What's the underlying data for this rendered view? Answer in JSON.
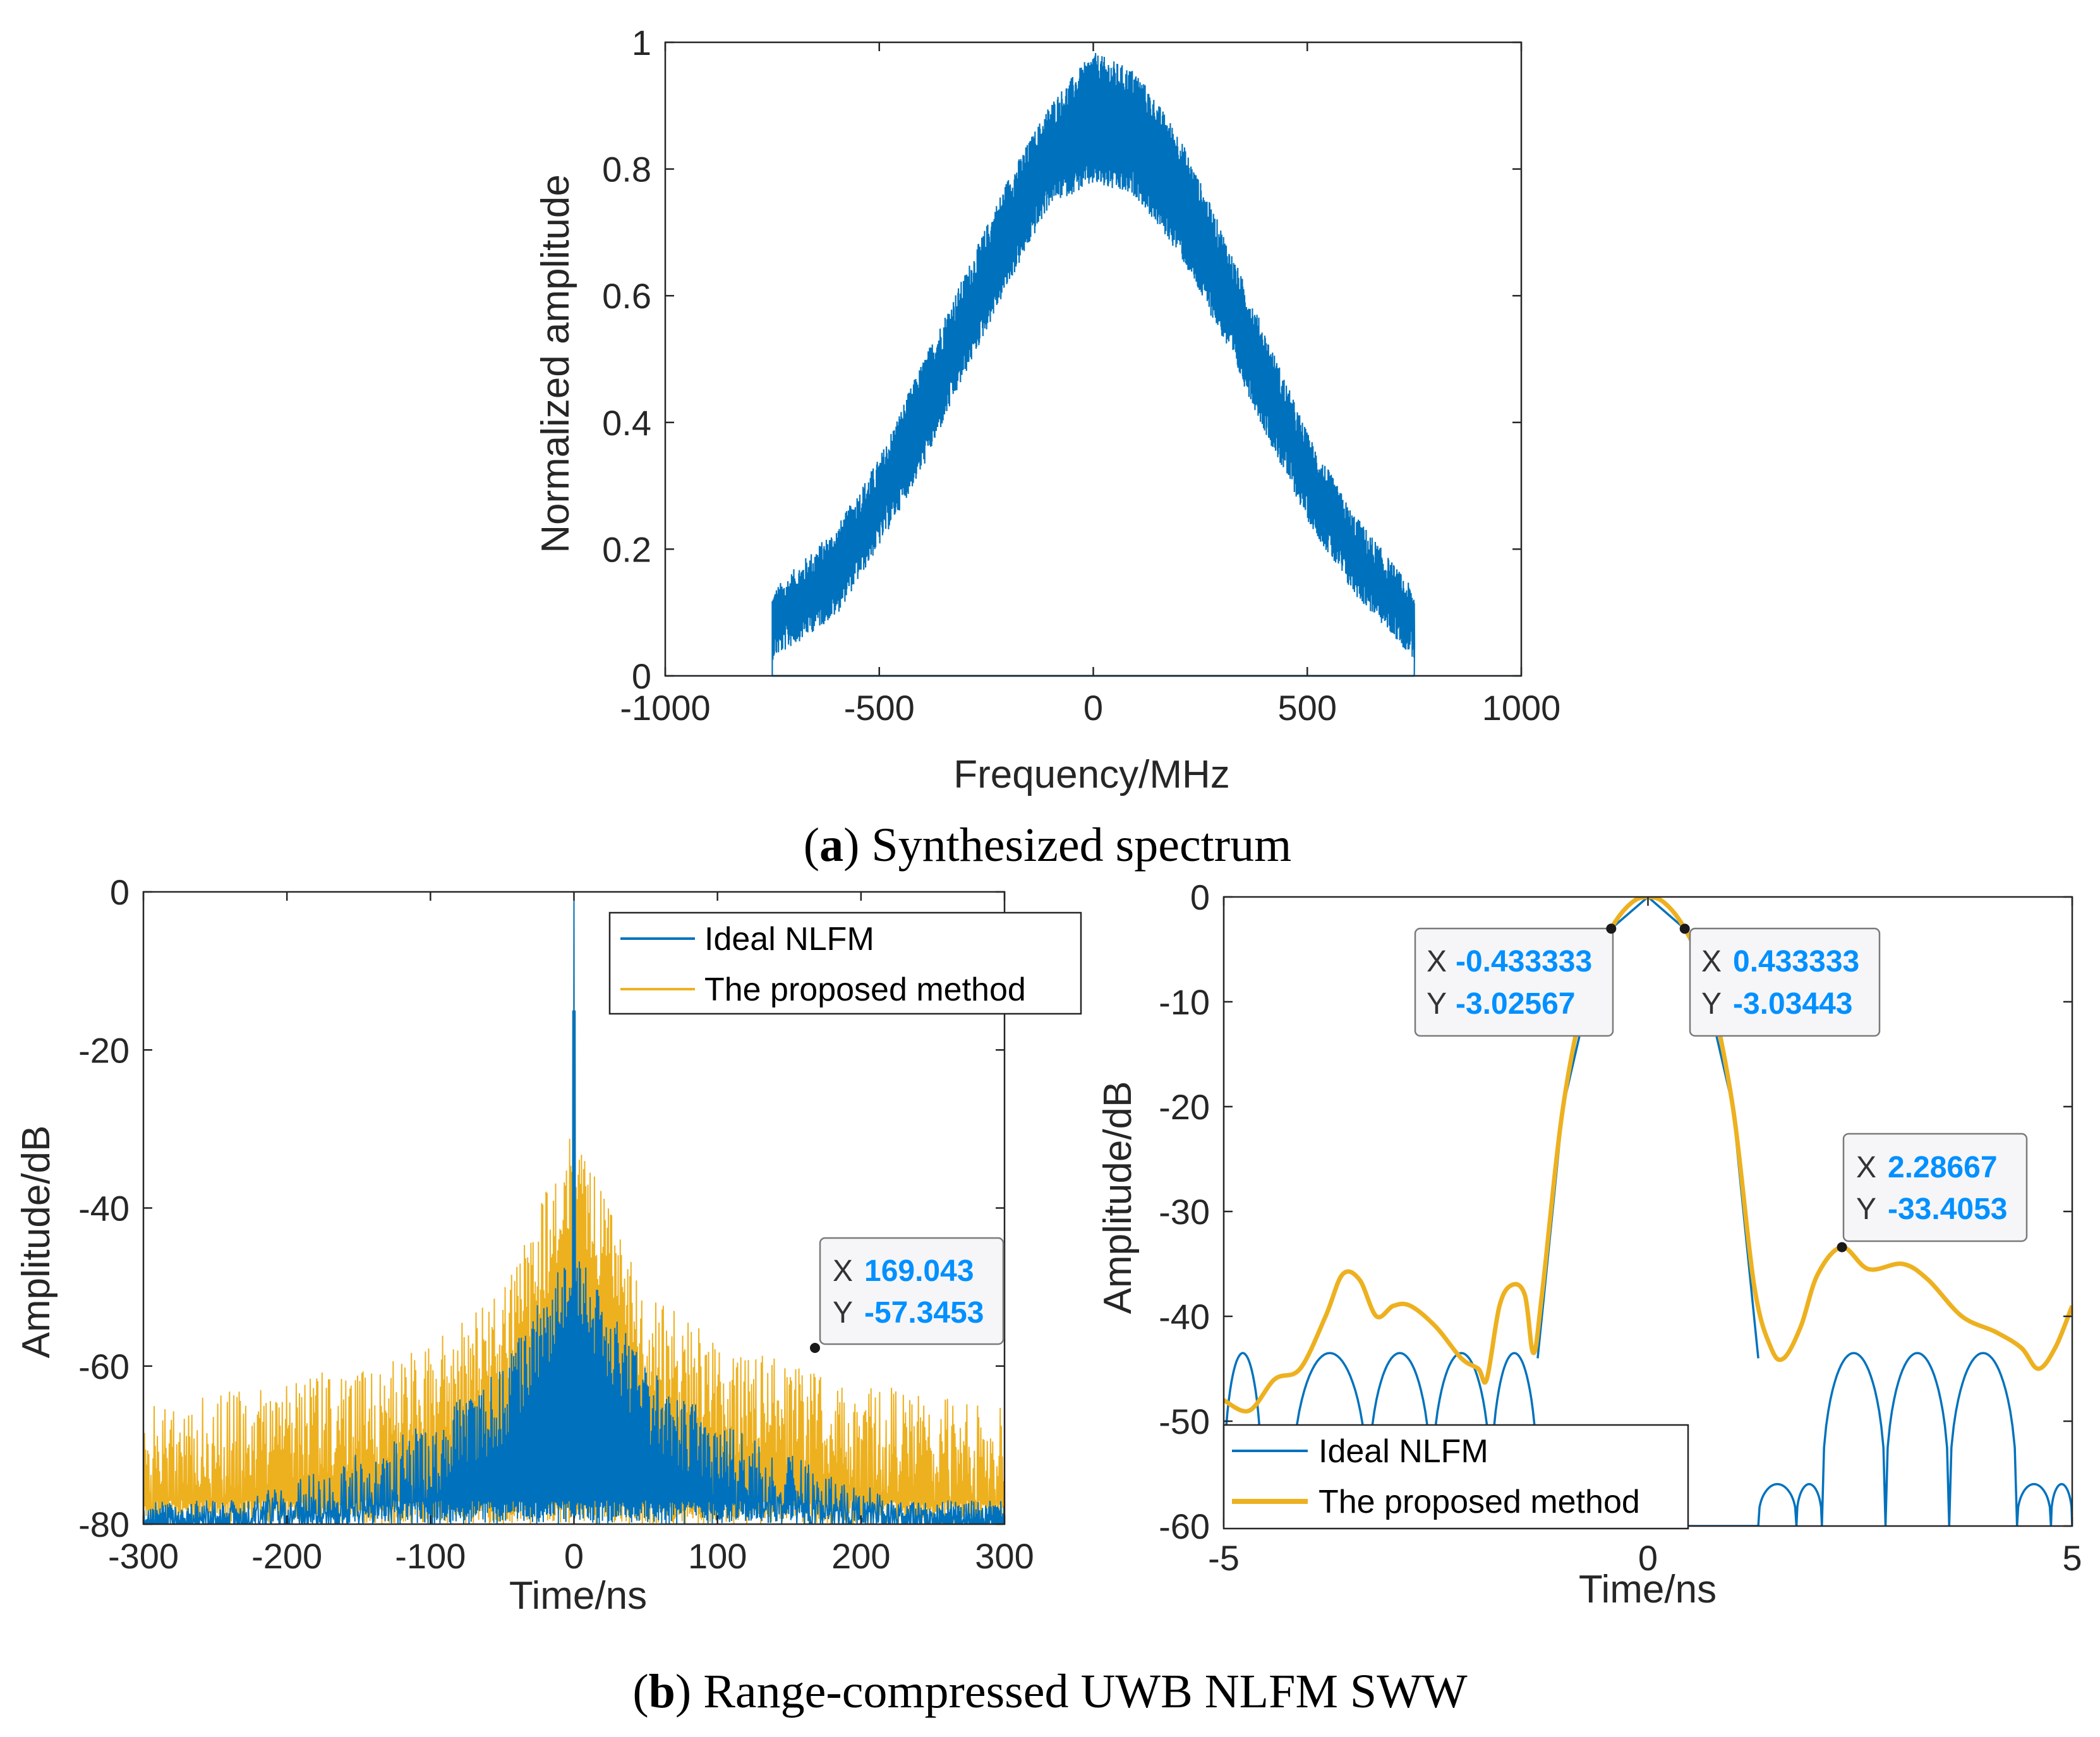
{
  "colors": {
    "ideal": "#0072BD",
    "proposed": "#EDB120",
    "axis": "#262626",
    "tip_value": "#0090ff"
  },
  "chart_data": [
    {
      "id": "a",
      "type": "area",
      "title": "",
      "xlabel": "Frequency/MHz",
      "ylabel": "Normalized amplitude",
      "xlim": [
        -1000,
        1000
      ],
      "ylim": [
        0,
        1
      ],
      "xticks": [
        -1000,
        -500,
        0,
        500,
        1000
      ],
      "yticks": [
        0,
        0.2,
        0.4,
        0.6,
        0.8,
        1
      ],
      "xtick_labels": [
        "-1000",
        "-500",
        "0",
        "500",
        "1000"
      ],
      "ytick_labels": [
        "0",
        "0.2",
        "0.4",
        "0.6",
        "0.8",
        "1"
      ],
      "band_edges_mhz": [
        -750,
        750
      ],
      "series": [
        {
          "name": "Synthesized spectrum",
          "color": "#0072BD",
          "envelope_upper": [
            [
              -750,
              0.11
            ],
            [
              -600,
              0.21
            ],
            [
              -500,
              0.32
            ],
            [
              -400,
              0.47
            ],
            [
              -300,
              0.61
            ],
            [
              -200,
              0.76
            ],
            [
              -100,
              0.88
            ],
            [
              0,
              0.96
            ],
            [
              100,
              0.93
            ],
            [
              200,
              0.83
            ],
            [
              300,
              0.68
            ],
            [
              400,
              0.52
            ],
            [
              500,
              0.36
            ],
            [
              600,
              0.24
            ],
            [
              750,
              0.11
            ]
          ],
          "envelope_lower": [
            [
              -750,
              0.07
            ],
            [
              -600,
              0.14
            ],
            [
              -500,
              0.25
            ],
            [
              -400,
              0.37
            ],
            [
              -300,
              0.52
            ],
            [
              -200,
              0.66
            ],
            [
              -100,
              0.79
            ],
            [
              0,
              0.82
            ],
            [
              100,
              0.8
            ],
            [
              200,
              0.71
            ],
            [
              300,
              0.58
            ],
            [
              400,
              0.43
            ],
            [
              500,
              0.29
            ],
            [
              600,
              0.18
            ],
            [
              750,
              0.07
            ]
          ]
        }
      ],
      "caption_label": "a",
      "caption_text": ") Synthesized spectrum"
    },
    {
      "id": "b-left",
      "type": "line",
      "xlabel": "Time/ns",
      "ylabel": "Amplitude/dB",
      "xlim": [
        -300,
        300
      ],
      "ylim": [
        -80,
        0
      ],
      "xticks": [
        -300,
        -200,
        -100,
        0,
        100,
        200,
        300
      ],
      "yticks": [
        -80,
        -60,
        -40,
        -20,
        0
      ],
      "xtick_labels": [
        "-300",
        "-200",
        "-100",
        "0",
        "100",
        "200",
        "300"
      ],
      "ytick_labels": [
        "-80",
        "-60",
        "-40",
        "-20",
        "0"
      ],
      "legend": [
        "Ideal NLFM",
        "The proposed method"
      ],
      "legend_position": "top-right",
      "series": [
        {
          "name": "Ideal NLFM",
          "color": "#0072BD",
          "peak": [
            0,
            0
          ],
          "sidelobe_envelope_db": [
            [
              -300,
              -80
            ],
            [
              -200,
              -75
            ],
            [
              -100,
              -67
            ],
            [
              -50,
              -60
            ],
            [
              0,
              -44
            ],
            [
              50,
              -60
            ],
            [
              100,
              -67
            ],
            [
              200,
              -75
            ],
            [
              300,
              -80
            ]
          ]
        },
        {
          "name": "The proposed method",
          "color": "#EDB120",
          "peak": [
            0,
            0
          ],
          "sidelobe_envelope_db": [
            [
              -300,
              -65
            ],
            [
              -200,
              -62
            ],
            [
              -100,
              -57
            ],
            [
              -50,
              -50
            ],
            [
              0,
              -30
            ],
            [
              50,
              -50
            ],
            [
              100,
              -57
            ],
            [
              200,
              -62
            ],
            [
              300,
              -65
            ]
          ]
        }
      ],
      "datatips": [
        {
          "x_label": "X",
          "x_value": "169.043",
          "y_label": "Y",
          "y_value": "-57.3453",
          "x": 169.043,
          "y": -57.3453
        }
      ]
    },
    {
      "id": "b-right",
      "type": "line",
      "xlabel": "Time/ns",
      "ylabel": "Amplitude/dB",
      "xlim": [
        -5,
        5
      ],
      "ylim": [
        -60,
        0
      ],
      "xticks": [
        -5,
        0,
        5
      ],
      "yticks": [
        -60,
        -50,
        -40,
        -30,
        -20,
        -10,
        0
      ],
      "xtick_labels": [
        "-5",
        "0",
        "5"
      ],
      "ytick_labels": [
        "-60",
        "-50",
        "-40",
        "-30",
        "-20",
        "-10",
        "0"
      ],
      "legend": [
        "Ideal NLFM",
        "The proposed method"
      ],
      "legend_position": "bottom-left",
      "series": [
        {
          "name": "Ideal NLFM",
          "color": "#0072BD",
          "mainlobe": [
            [
              -1.3,
              -44
            ],
            [
              -1.0,
              -20
            ],
            [
              -0.6,
              -6
            ],
            [
              -0.433333,
              -3.02567
            ],
            [
              0,
              0
            ],
            [
              0.433333,
              -3.03443
            ],
            [
              0.6,
              -6
            ],
            [
              1.0,
              -20
            ],
            [
              1.3,
              -44
            ]
          ],
          "sidelobe_peaks_db": -43.5,
          "sidelobe_nulls_db": -60
        },
        {
          "name": "The proposed method",
          "color": "#EDB120",
          "points": [
            [
              -5,
              -48
            ],
            [
              -4.7,
              -49
            ],
            [
              -4.4,
              -46
            ],
            [
              -4.1,
              -45
            ],
            [
              -3.8,
              -40
            ],
            [
              -3.6,
              -36
            ],
            [
              -3.4,
              -36.5
            ],
            [
              -3.2,
              -40
            ],
            [
              -3.0,
              -39
            ],
            [
              -2.8,
              -39
            ],
            [
              -2.5,
              -41
            ],
            [
              -2.2,
              -44
            ],
            [
              -2.0,
              -45
            ],
            [
              -1.9,
              -46
            ],
            [
              -1.75,
              -39
            ],
            [
              -1.6,
              -37
            ],
            [
              -1.45,
              -38
            ],
            [
              -1.35,
              -43.5
            ],
            [
              -1.25,
              -38
            ],
            [
              -1.0,
              -20
            ],
            [
              -0.7,
              -8
            ],
            [
              -0.433333,
              -3.02567
            ],
            [
              -0.2,
              -0.6
            ],
            [
              0,
              0
            ],
            [
              0.2,
              -0.6
            ],
            [
              0.433333,
              -3.03443
            ],
            [
              0.7,
              -8
            ],
            [
              1.0,
              -20
            ],
            [
              1.25,
              -37
            ],
            [
              1.45,
              -43
            ],
            [
              1.6,
              -44
            ],
            [
              1.8,
              -41
            ],
            [
              2.0,
              -36
            ],
            [
              2.28667,
              -33.4053
            ],
            [
              2.6,
              -35.5
            ],
            [
              3.0,
              -35
            ],
            [
              3.3,
              -36.5
            ],
            [
              3.7,
              -40
            ],
            [
              4.1,
              -41.5
            ],
            [
              4.4,
              -43
            ],
            [
              4.6,
              -45
            ],
            [
              4.8,
              -43
            ],
            [
              5,
              -39
            ]
          ]
        }
      ],
      "datatips": [
        {
          "x_label": "X",
          "x_value": "-0.433333",
          "y_label": "Y",
          "y_value": "-3.02567",
          "x": -0.433333,
          "y": -3.02567
        },
        {
          "x_label": "X",
          "x_value": "0.433333",
          "y_label": "Y",
          "y_value": "-3.03443",
          "x": 0.433333,
          "y": -3.03443
        },
        {
          "x_label": "X",
          "x_value": "2.28667",
          "y_label": "Y",
          "y_value": "-33.4053",
          "x": 2.28667,
          "y": -33.4053
        }
      ],
      "caption_label": "b",
      "caption_text": ") Range-compressed UWB NLFM SWW"
    }
  ]
}
